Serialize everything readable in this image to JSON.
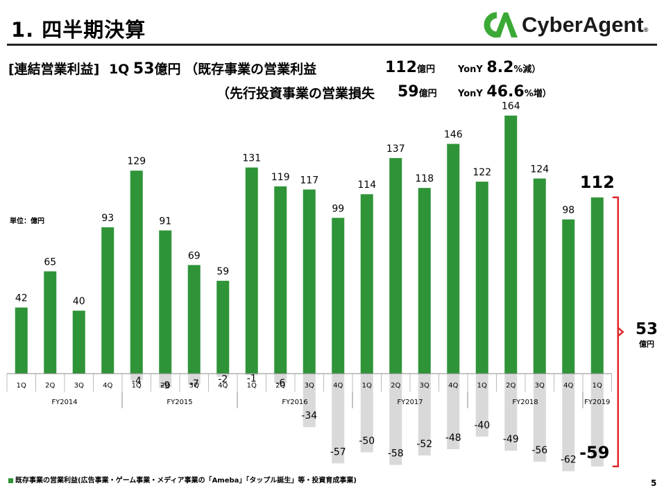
{
  "header": {
    "title": "1. 四半期決算",
    "logo_text": "CyberAgent",
    "logo_reg": "®"
  },
  "summary": {
    "line1_bracket": "[連結営業利益]",
    "line1_q": "1Q",
    "line1_value": "53",
    "line1_unit": "億円",
    "line1_paren": "（既存事業の営業利益",
    "line1_amount": "112",
    "line1_amount_unit": "億円",
    "line1_yoy_label": "YonY",
    "line1_yoy_value": "8.2",
    "line1_yoy_suffix": "%減）",
    "line2_paren": "（先行投資事業の営業損失",
    "line2_amount": "59",
    "line2_amount_unit": "億円",
    "line2_yoy_label": "YonY",
    "line2_yoy_value": "46.6",
    "line2_yoy_suffix": "%増）"
  },
  "unit_label": "単位：億円",
  "legend_text": "既存事業の営業利益(広告事業・ゲーム事業・メディア事業の「Ameba」「タップル誕生」等・投資育成事業)",
  "page_number": "5",
  "callout": {
    "total_value": "53",
    "total_unit": "億円"
  },
  "colors": {
    "positive": "#2f9438",
    "negative": "#d9d9d9",
    "bracket": "#e0262b",
    "logo_green": "#3ba935"
  },
  "chart_data": {
    "type": "bar",
    "title": "",
    "xlabel": "",
    "ylabel": "億円",
    "categories": [
      "1Q",
      "2Q",
      "3Q",
      "4Q",
      "1Q",
      "2Q",
      "3Q",
      "4Q",
      "1Q",
      "2Q",
      "3Q",
      "4Q",
      "1Q",
      "2Q",
      "3Q",
      "4Q",
      "1Q",
      "2Q",
      "3Q",
      "4Q",
      "1Q"
    ],
    "groups": [
      {
        "label": "FY2014",
        "count": 4
      },
      {
        "label": "FY2015",
        "count": 4
      },
      {
        "label": "FY2016",
        "count": 4
      },
      {
        "label": "FY2017",
        "count": 4
      },
      {
        "label": "FY2018",
        "count": 4
      },
      {
        "label": "FY2019",
        "count": 1
      }
    ],
    "series": [
      {
        "name": "既存事業の営業利益",
        "values": [
          42,
          65,
          40,
          93,
          129,
          91,
          69,
          59,
          131,
          119,
          117,
          99,
          114,
          137,
          118,
          146,
          122,
          164,
          124,
          98,
          112
        ],
        "labels": [
          "42",
          "65",
          "40",
          "93",
          "129",
          "91",
          "69",
          "59",
          "131",
          "119",
          "117",
          "99",
          "114",
          "137",
          "118",
          "146",
          "122",
          "164",
          "124",
          "98",
          "112"
        ]
      },
      {
        "name": "先行投資事業の営業損失",
        "values": [
          0,
          0,
          0,
          0,
          -4,
          -9,
          -7,
          -2,
          -1,
          -6,
          -34,
          -57,
          -50,
          -58,
          -52,
          -48,
          -40,
          -49,
          -56,
          -62,
          -59
        ],
        "labels": [
          "",
          "",
          "",
          "",
          "-4",
          "-9",
          "-7",
          "-2",
          "-1",
          "-6",
          "-34",
          "-57",
          "-50",
          "-58",
          "-52",
          "-48",
          "-40",
          "-49",
          "-56",
          "-62",
          "-59"
        ]
      }
    ],
    "highlight_last": true,
    "ylim": [
      -62,
      164
    ]
  }
}
